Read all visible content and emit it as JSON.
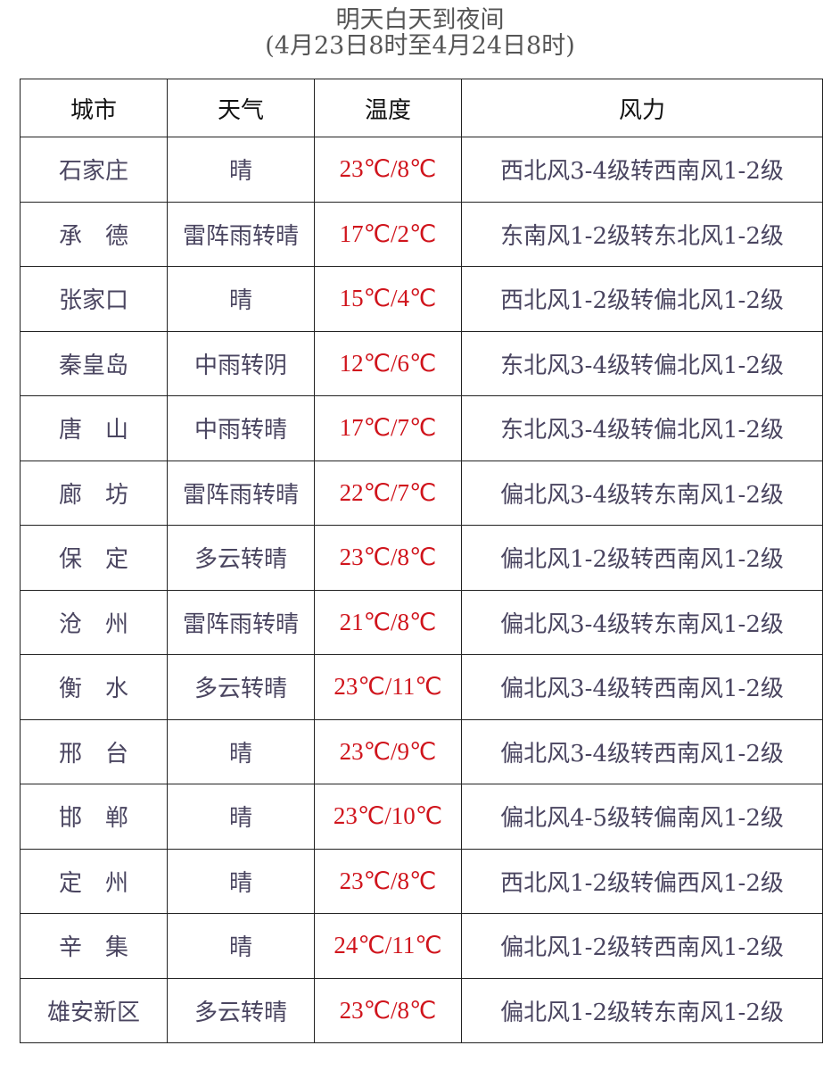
{
  "title": "明天白天到夜间",
  "subtitle": "(4月23日8时至4月24日8时)",
  "colors": {
    "temperature": "#d0141c",
    "text": "#4a4560"
  },
  "table": {
    "headers": [
      "城市",
      "天气",
      "温度",
      "风力"
    ],
    "rows": [
      {
        "city": "石家庄",
        "weather": "晴",
        "temp": "23℃/8℃",
        "wind": "西北风3-4级转西南风1-2级"
      },
      {
        "city": "承　德",
        "weather": "雷阵雨转晴",
        "temp": "17℃/2℃",
        "wind": "东南风1-2级转东北风1-2级"
      },
      {
        "city": "张家口",
        "weather": "晴",
        "temp": "15℃/4℃",
        "wind": "西北风1-2级转偏北风1-2级"
      },
      {
        "city": "秦皇岛",
        "weather": "中雨转阴",
        "temp": "12℃/6℃",
        "wind": "东北风3-4级转偏北风1-2级"
      },
      {
        "city": "唐　山",
        "weather": "中雨转晴",
        "temp": "17℃/7℃",
        "wind": "东北风3-4级转偏北风1-2级"
      },
      {
        "city": "廊　坊",
        "weather": "雷阵雨转晴",
        "temp": "22℃/7℃",
        "wind": "偏北风3-4级转东南风1-2级"
      },
      {
        "city": "保　定",
        "weather": "多云转晴",
        "temp": "23℃/8℃",
        "wind": "偏北风1-2级转西南风1-2级"
      },
      {
        "city": "沧　州",
        "weather": "雷阵雨转晴",
        "temp": "21℃/8℃",
        "wind": "偏北风3-4级转东南风1-2级"
      },
      {
        "city": "衡　水",
        "weather": "多云转晴",
        "temp": "23℃/11℃",
        "wind": "偏北风3-4级转西南风1-2级"
      },
      {
        "city": "邢　台",
        "weather": "晴",
        "temp": "23℃/9℃",
        "wind": "偏北风3-4级转西南风1-2级"
      },
      {
        "city": "邯　郸",
        "weather": "晴",
        "temp": "23℃/10℃",
        "wind": "偏北风4-5级转偏南风1-2级"
      },
      {
        "city": "定　州",
        "weather": "晴",
        "temp": "23℃/8℃",
        "wind": "西北风1-2级转偏西风1-2级"
      },
      {
        "city": "辛　集",
        "weather": "晴",
        "temp": "24℃/11℃",
        "wind": "偏北风1-2级转西南风1-2级"
      },
      {
        "city": "雄安新区",
        "weather": "多云转晴",
        "temp": "23℃/8℃",
        "wind": "偏北风1-2级转东南风1-2级"
      }
    ]
  }
}
